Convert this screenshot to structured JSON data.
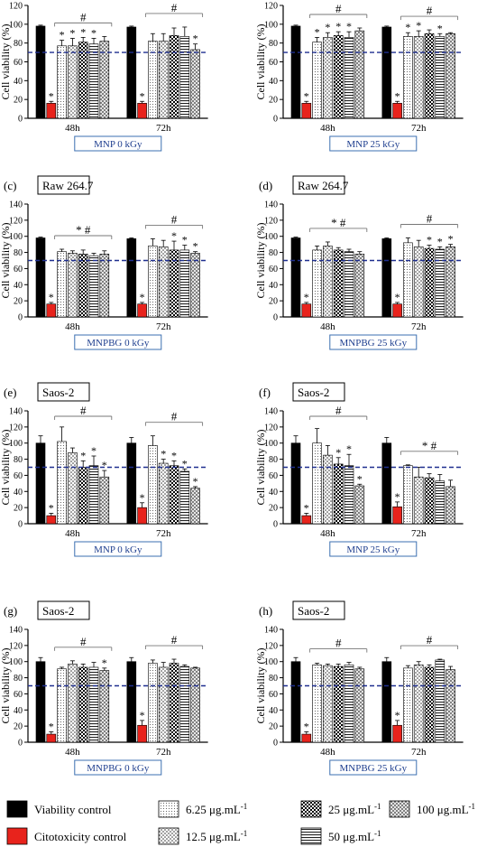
{
  "chart_data": [
    {
      "type": "bar",
      "panel_label": "",
      "cell_line": "",
      "condition": "MNP 0 kGy",
      "ylabel": "Cell viability (%)",
      "ylim": [
        0,
        120
      ],
      "yticks": [
        "0",
        "20",
        "40",
        "60",
        "80",
        "100",
        "120"
      ],
      "threshold": 70,
      "groups": [
        {
          "name": "48h",
          "sig_label": "#",
          "values": [
            98,
            16,
            77,
            77,
            81,
            79,
            82
          ],
          "errors": [
            1,
            2,
            6,
            8,
            5,
            6,
            5
          ],
          "stars": [
            "",
            "*",
            "*",
            "*",
            "*",
            "*",
            ""
          ]
        },
        {
          "name": "72h",
          "sig_label": "#",
          "values": [
            97,
            16,
            82,
            82,
            88,
            87,
            73
          ],
          "errors": [
            1,
            2,
            8,
            8,
            8,
            10,
            6
          ],
          "stars": [
            "",
            "*",
            "",
            "",
            "",
            "",
            "*"
          ]
        }
      ]
    },
    {
      "type": "bar",
      "panel_label": "",
      "cell_line": "",
      "condition": "MNP 25 kGy",
      "ylabel": "Cell viability (%)",
      "ylim": [
        0,
        120
      ],
      "yticks": [
        "0",
        "20",
        "40",
        "60",
        "80",
        "100",
        "120"
      ],
      "threshold": 70,
      "groups": [
        {
          "name": "48h",
          "sig_label": "#",
          "values": [
            98,
            16,
            81,
            86,
            88,
            86,
            93
          ],
          "errors": [
            1,
            2,
            5,
            5,
            4,
            6,
            3
          ],
          "stars": [
            "",
            "*",
            "*",
            "*",
            "*",
            "*",
            ""
          ]
        },
        {
          "name": "72h",
          "sig_label": "#",
          "values": [
            97,
            16,
            87,
            87,
            90,
            87,
            90
          ],
          "errors": [
            1,
            2,
            4,
            6,
            4,
            3,
            1
          ],
          "stars": [
            "",
            "*",
            "*",
            "*",
            "",
            "*",
            ""
          ]
        }
      ]
    },
    {
      "type": "bar",
      "panel_label": "(c)",
      "cell_line": "Raw 264.7",
      "condition": "MNPBG 0 kGy",
      "ylabel": "Cell viability (%)",
      "ylim": [
        0,
        140
      ],
      "yticks": [
        "0",
        "20",
        "40",
        "60",
        "80",
        "100",
        "120",
        "140"
      ],
      "threshold": 70,
      "groups": [
        {
          "name": "48h",
          "sig_label": "* #",
          "values": [
            98,
            16,
            81,
            79,
            78,
            76,
            78
          ],
          "errors": [
            1,
            2,
            3,
            3,
            5,
            3,
            4
          ],
          "stars": [
            "",
            "*",
            "",
            "",
            "",
            "",
            ""
          ]
        },
        {
          "name": "72h",
          "sig_label": "#",
          "values": [
            97,
            16,
            88,
            87,
            83,
            83,
            79
          ],
          "errors": [
            1,
            2,
            9,
            8,
            11,
            6,
            2
          ],
          "stars": [
            "",
            "*",
            "",
            "",
            "*",
            "*",
            "*"
          ]
        }
      ]
    },
    {
      "type": "bar",
      "panel_label": "(d)",
      "cell_line": "Raw 264.7",
      "condition": "MNPBG 25 kGy",
      "ylabel": "Cell viability (%)",
      "ylim": [
        0,
        140
      ],
      "yticks": [
        "0",
        "20",
        "40",
        "60",
        "80",
        "100",
        "120",
        "140"
      ],
      "threshold": 70,
      "groups": [
        {
          "name": "48h",
          "sig_label": "* #",
          "values": [
            98,
            16,
            83,
            88,
            83,
            81,
            78
          ],
          "errors": [
            1,
            2,
            5,
            5,
            3,
            3,
            3
          ],
          "stars": [
            "",
            "*",
            "",
            "",
            "",
            "",
            ""
          ]
        },
        {
          "name": "72h",
          "sig_label": "#",
          "values": [
            97,
            16,
            92,
            87,
            85,
            84,
            87
          ],
          "errors": [
            1,
            2,
            6,
            8,
            4,
            3,
            3
          ],
          "stars": [
            "",
            "*",
            "",
            "",
            "*",
            "*",
            "*"
          ]
        }
      ]
    },
    {
      "type": "bar",
      "panel_label": "(e)",
      "cell_line": "Saos-2",
      "condition": "MNP 0 kGy",
      "ylabel": "Cell viability (%)",
      "ylim": [
        0,
        140
      ],
      "yticks": [
        "0",
        "20",
        "40",
        "60",
        "80",
        "100",
        "120",
        "140"
      ],
      "threshold": 70,
      "groups": [
        {
          "name": "48h",
          "sig_label": "#",
          "values": [
            100,
            10,
            102,
            88,
            70,
            72,
            58
          ],
          "errors": [
            9,
            3,
            18,
            6,
            8,
            12,
            8
          ],
          "stars": [
            "",
            "*",
            "",
            "",
            "*",
            "*",
            "*"
          ]
        },
        {
          "name": "72h",
          "sig_label": "#",
          "values": [
            100,
            20,
            97,
            75,
            72,
            65,
            44
          ],
          "errors": [
            7,
            6,
            12,
            5,
            6,
            3,
            2
          ],
          "stars": [
            "",
            "*",
            "",
            "*",
            "*",
            "*",
            "*"
          ]
        }
      ]
    },
    {
      "type": "bar",
      "panel_label": "(f)",
      "cell_line": "Saos-2",
      "condition": "MNP 25 kGy",
      "ylabel": "Cell viability (%)",
      "ylim": [
        0,
        140
      ],
      "yticks": [
        "0",
        "20",
        "40",
        "60",
        "80",
        "100",
        "120",
        "140"
      ],
      "threshold": 70,
      "groups": [
        {
          "name": "48h",
          "sig_label": "#",
          "values": [
            100,
            10,
            100,
            85,
            74,
            72,
            47
          ],
          "errors": [
            9,
            3,
            18,
            12,
            8,
            14,
            2
          ],
          "stars": [
            "",
            "*",
            "",
            "",
            "*",
            "*",
            "*"
          ]
        },
        {
          "name": "72h",
          "sig_label": "* #",
          "values": [
            100,
            21,
            72,
            58,
            57,
            53,
            46
          ],
          "errors": [
            7,
            6,
            1,
            12,
            5,
            8,
            8
          ],
          "stars": [
            "",
            "*",
            "",
            "",
            "",
            "",
            ""
          ]
        }
      ]
    },
    {
      "type": "bar",
      "panel_label": "(g)",
      "cell_line": "Saos-2",
      "condition": "MNPBG 0 kGy",
      "ylabel": "Cell viability (%)",
      "ylim": [
        0,
        140
      ],
      "yticks": [
        "0",
        "20",
        "40",
        "60",
        "80",
        "100",
        "120",
        "140"
      ],
      "threshold": 70,
      "groups": [
        {
          "name": "48h",
          "sig_label": "#",
          "values": [
            100,
            10,
            91,
            97,
            93,
            93,
            89
          ],
          "errors": [
            5,
            3,
            2,
            4,
            4,
            6,
            3
          ],
          "stars": [
            "",
            "*",
            "",
            "",
            "",
            "",
            "*"
          ]
        },
        {
          "name": "72h",
          "sig_label": "#",
          "values": [
            100,
            21,
            98,
            93,
            98,
            94,
            92
          ],
          "errors": [
            5,
            6,
            4,
            6,
            5,
            2,
            1
          ],
          "stars": [
            "",
            "*",
            "",
            "",
            "",
            "",
            ""
          ]
        }
      ]
    },
    {
      "type": "bar",
      "panel_label": "(h)",
      "cell_line": "Saos-2",
      "condition": "MNPBG 25 kGy",
      "ylabel": "Cell viability (%)",
      "ylim": [
        0,
        140
      ],
      "yticks": [
        "0",
        "20",
        "40",
        "60",
        "80",
        "100",
        "120",
        "140"
      ],
      "threshold": 70,
      "groups": [
        {
          "name": "48h",
          "sig_label": "#",
          "values": [
            100,
            10,
            96,
            95,
            94,
            96,
            91
          ],
          "errors": [
            5,
            3,
            2,
            2,
            3,
            3,
            2
          ],
          "stars": [
            "",
            "*",
            "",
            "",
            "",
            "",
            ""
          ]
        },
        {
          "name": "72h",
          "sig_label": "#",
          "values": [
            100,
            21,
            92,
            96,
            93,
            102,
            90
          ],
          "errors": [
            5,
            6,
            3,
            4,
            3,
            1,
            4
          ],
          "stars": [
            "",
            "*",
            "",
            "",
            "",
            "",
            ""
          ]
        }
      ]
    }
  ],
  "legend": [
    {
      "label": "Viability control",
      "superscript": "",
      "pattern": "solid-black"
    },
    {
      "label": "Citotoxicity control",
      "superscript": "",
      "pattern": "solid-red"
    },
    {
      "label": "6.25 μg.mL",
      "superscript": "-1",
      "pattern": "fine-dots"
    },
    {
      "label": "12.5 μg.mL",
      "superscript": "-1",
      "pattern": "coarse-dots"
    },
    {
      "label": "25 μg.mL",
      "superscript": "-1",
      "pattern": "checker"
    },
    {
      "label": "50 μg.mL",
      "superscript": "-1",
      "pattern": "hlines"
    },
    {
      "label": "100 μg.mL",
      "superscript": "-1",
      "pattern": "crosshatch"
    }
  ],
  "colors": {
    "viability_control": "#000000",
    "citotoxicity_control": "#e8231c",
    "threshold_line": "#1f2f8f",
    "condition_box_border": "#3b6fb0"
  },
  "pattern_order": [
    "solid-black",
    "solid-red",
    "fine-dots",
    "coarse-dots",
    "checker",
    "hlines",
    "crosshatch"
  ]
}
